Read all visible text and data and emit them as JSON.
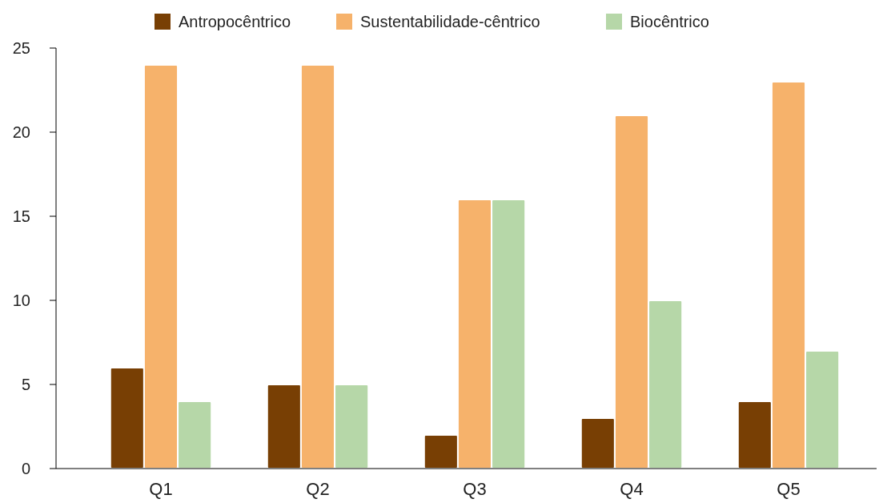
{
  "chart_data": {
    "type": "bar",
    "categories": [
      "Q1",
      "Q2",
      "Q3",
      "Q4",
      "Q5"
    ],
    "series": [
      {
        "name": "Antropocêntrico",
        "color": "#783f04",
        "values": [
          6,
          5,
          2,
          3,
          4
        ]
      },
      {
        "name": "Sustentabilidade-cêntrico",
        "color": "#f6b26b",
        "values": [
          24,
          24,
          16,
          21,
          23
        ]
      },
      {
        "name": "Biocêntrico",
        "color": "#b6d7a8",
        "values": [
          4,
          5,
          16,
          10,
          7
        ]
      }
    ],
    "ylim": [
      0,
      25
    ],
    "yticks": [
      0,
      5,
      10,
      15,
      20,
      25
    ],
    "grid": false,
    "legend": "top"
  }
}
